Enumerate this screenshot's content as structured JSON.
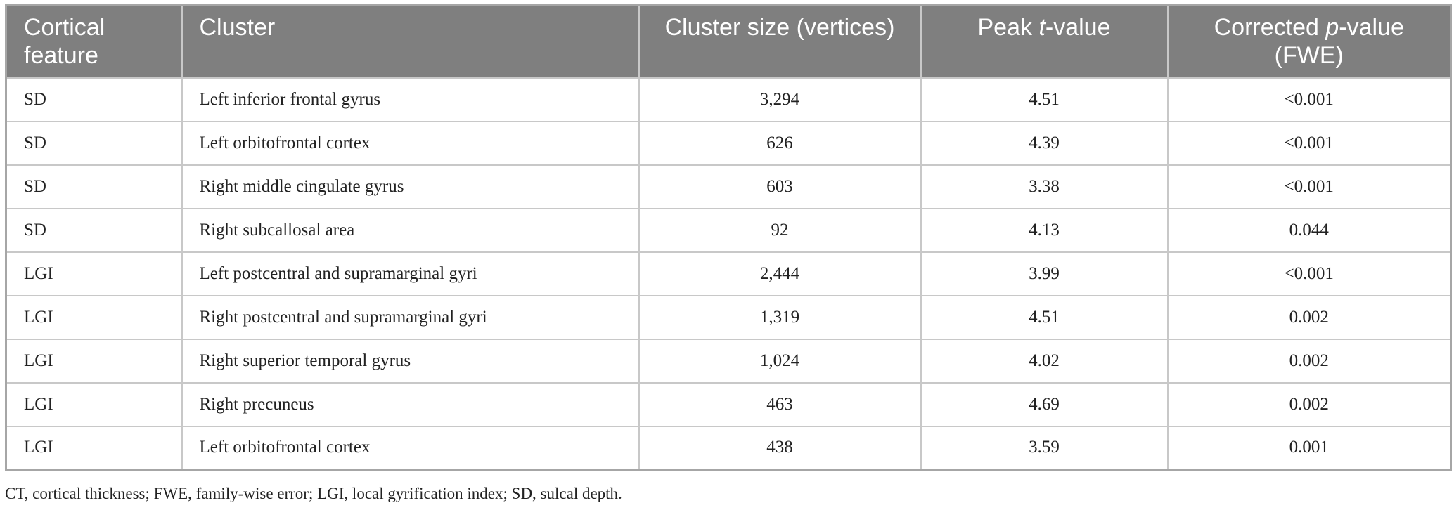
{
  "table": {
    "header": [
      [
        "Cortical feature"
      ],
      [
        "Cluster"
      ],
      [
        "Cluster size (vertices)"
      ],
      [
        "Peak ",
        "t",
        "-value"
      ],
      [
        "Corrected ",
        "p",
        "-value (FWE)"
      ]
    ],
    "rows": [
      [
        "SD",
        "Left inferior frontal gyrus",
        "3,294",
        "4.51",
        "<0.001"
      ],
      [
        "SD",
        "Left orbitofrontal cortex",
        "626",
        "4.39",
        "<0.001"
      ],
      [
        "SD",
        "Right middle cingulate gyrus",
        "603",
        "3.38",
        "<0.001"
      ],
      [
        "SD",
        "Right subcallosal area",
        "92",
        "4.13",
        "0.044"
      ],
      [
        "LGI",
        "Left postcentral and supramarginal gyri",
        "2,444",
        "3.99",
        "<0.001"
      ],
      [
        "LGI",
        "Right postcentral and supramarginal gyri",
        "1,319",
        "4.51",
        "0.002"
      ],
      [
        "LGI",
        "Right superior temporal gyrus",
        "1,024",
        "4.02",
        "0.002"
      ],
      [
        "LGI",
        "Right precuneus",
        "463",
        "4.69",
        "0.002"
      ],
      [
        "LGI",
        "Left orbitofrontal cortex",
        "438",
        "3.59",
        "0.001"
      ]
    ],
    "footnote": "CT, cortical thickness; FWE, family-wise error; LGI, local gyrification index; SD, sulcal depth."
  }
}
